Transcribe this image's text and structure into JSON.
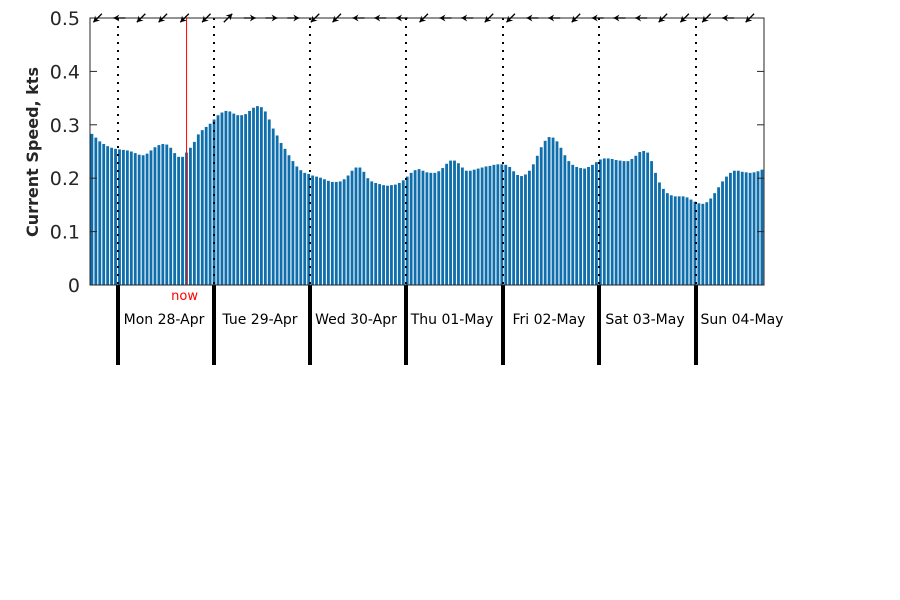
{
  "chart_data": {
    "type": "bar",
    "title": "",
    "ylabel": "Current Speed, kts",
    "ylim": [
      0,
      0.5
    ],
    "yticks": [
      "0",
      "0.1",
      "0.2",
      "0.3",
      "0.4",
      "0.5"
    ],
    "bar_color": "#0f6fad",
    "now_color": "#ff0000",
    "now_label": "now",
    "now_index": 24,
    "grid": false,
    "days": [
      "Mon 28-Apr",
      "Tue 29-Apr",
      "Wed 30-Apr",
      "Thu 01-May",
      "Fri 02-May",
      "Sat 03-May",
      "Sun 04-May"
    ],
    "series": [
      {
        "values": [
          0.283,
          0.276,
          0.269,
          0.264,
          0.26,
          0.257,
          0.255,
          0.254,
          0.253,
          0.252,
          0.25,
          0.247,
          0.244,
          0.243,
          0.246,
          0.252,
          0.258,
          0.262,
          0.264,
          0.263,
          0.257,
          0.247,
          0.24,
          0.24,
          0.248,
          0.257,
          0.268,
          0.282,
          0.29,
          0.296,
          0.302,
          0.31,
          0.318,
          0.323,
          0.326,
          0.325,
          0.321,
          0.318,
          0.318,
          0.32,
          0.326,
          0.332,
          0.335,
          0.333,
          0.325,
          0.31,
          0.293,
          0.28,
          0.266,
          0.255,
          0.243,
          0.232,
          0.222,
          0.215,
          0.21,
          0.208,
          0.205,
          0.203,
          0.201,
          0.198,
          0.195,
          0.193,
          0.193,
          0.194,
          0.198,
          0.205,
          0.214,
          0.22,
          0.22,
          0.212,
          0.2,
          0.194,
          0.191,
          0.189,
          0.187,
          0.186,
          0.187,
          0.188,
          0.191,
          0.196,
          0.203,
          0.21,
          0.215,
          0.217,
          0.214,
          0.211,
          0.21,
          0.21,
          0.213,
          0.219,
          0.227,
          0.233,
          0.233,
          0.228,
          0.22,
          0.214,
          0.214,
          0.216,
          0.218,
          0.22,
          0.222,
          0.223,
          0.225,
          0.226,
          0.226,
          0.225,
          0.221,
          0.213,
          0.206,
          0.204,
          0.207,
          0.214,
          0.226,
          0.242,
          0.258,
          0.27,
          0.277,
          0.276,
          0.269,
          0.257,
          0.243,
          0.232,
          0.225,
          0.221,
          0.219,
          0.218,
          0.221,
          0.225,
          0.23,
          0.235,
          0.237,
          0.237,
          0.236,
          0.234,
          0.233,
          0.232,
          0.232,
          0.236,
          0.242,
          0.249,
          0.251,
          0.248,
          0.232,
          0.21,
          0.192,
          0.18,
          0.172,
          0.168,
          0.166,
          0.166,
          0.166,
          0.164,
          0.16,
          0.156,
          0.153,
          0.152,
          0.155,
          0.162,
          0.172,
          0.183,
          0.194,
          0.203,
          0.21,
          0.214,
          0.214,
          0.212,
          0.211,
          0.21,
          0.211,
          0.213,
          0.216
        ]
      }
    ],
    "arrows": [
      "sw",
      "w",
      "sw",
      "sw",
      "sw",
      "sw",
      "ne",
      "e",
      "e",
      "e",
      "sw",
      "sw",
      "w",
      "w",
      "w",
      "sw",
      "w",
      "w",
      "sw",
      "sw",
      "w",
      "w",
      "sw",
      "w",
      "w",
      "w",
      "sw",
      "sw",
      "sw",
      "w",
      "sw"
    ]
  }
}
